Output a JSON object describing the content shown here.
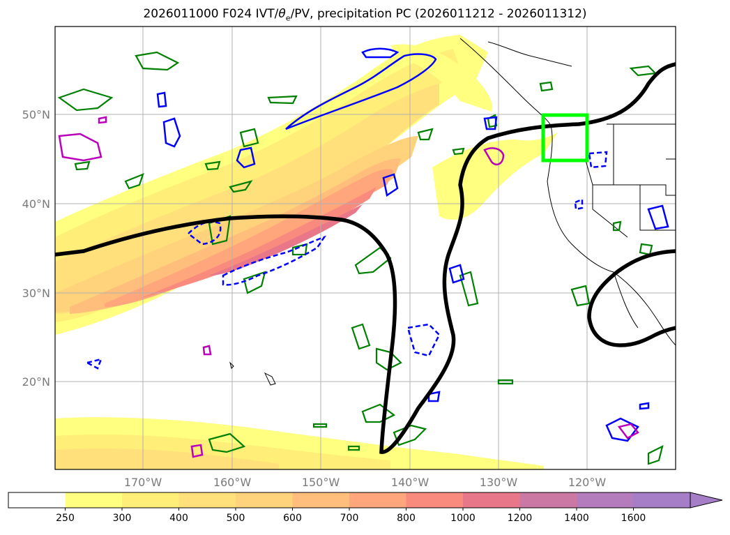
{
  "title_prefix": "2026011000 F024 IVT/",
  "title_theta": "θ",
  "title_sub": "e",
  "title_suffix": "/PV, precipitation PC (2026011212 - 2026011312)",
  "axes": {
    "lat_labels": [
      "50°N",
      "40°N",
      "30°N",
      "20°N"
    ],
    "lon_labels": [
      "170°W",
      "160°W",
      "150°W",
      "140°W",
      "130°W",
      "120°W"
    ]
  },
  "colorbar": {
    "levels": [
      "250",
      "300",
      "400",
      "500",
      "600",
      "700",
      "800",
      "1000",
      "1200",
      "1400",
      "1600"
    ],
    "colors": [
      "#ffffff",
      "#ffff80",
      "#ffee78",
      "#ffe07a",
      "#ffd27c",
      "#ffbe7c",
      "#ffa67c",
      "#f98a7e",
      "#e8778a",
      "#cc78a5",
      "#b47cbc",
      "#a67ec8"
    ]
  },
  "colors": {
    "pv_contour": "#000000",
    "green_contour": "#008000",
    "blue_contour": "#0000ff",
    "magenta_contour": "#bb00bb",
    "target_box": "#00ff00",
    "grid": "#b0b0b0"
  }
}
